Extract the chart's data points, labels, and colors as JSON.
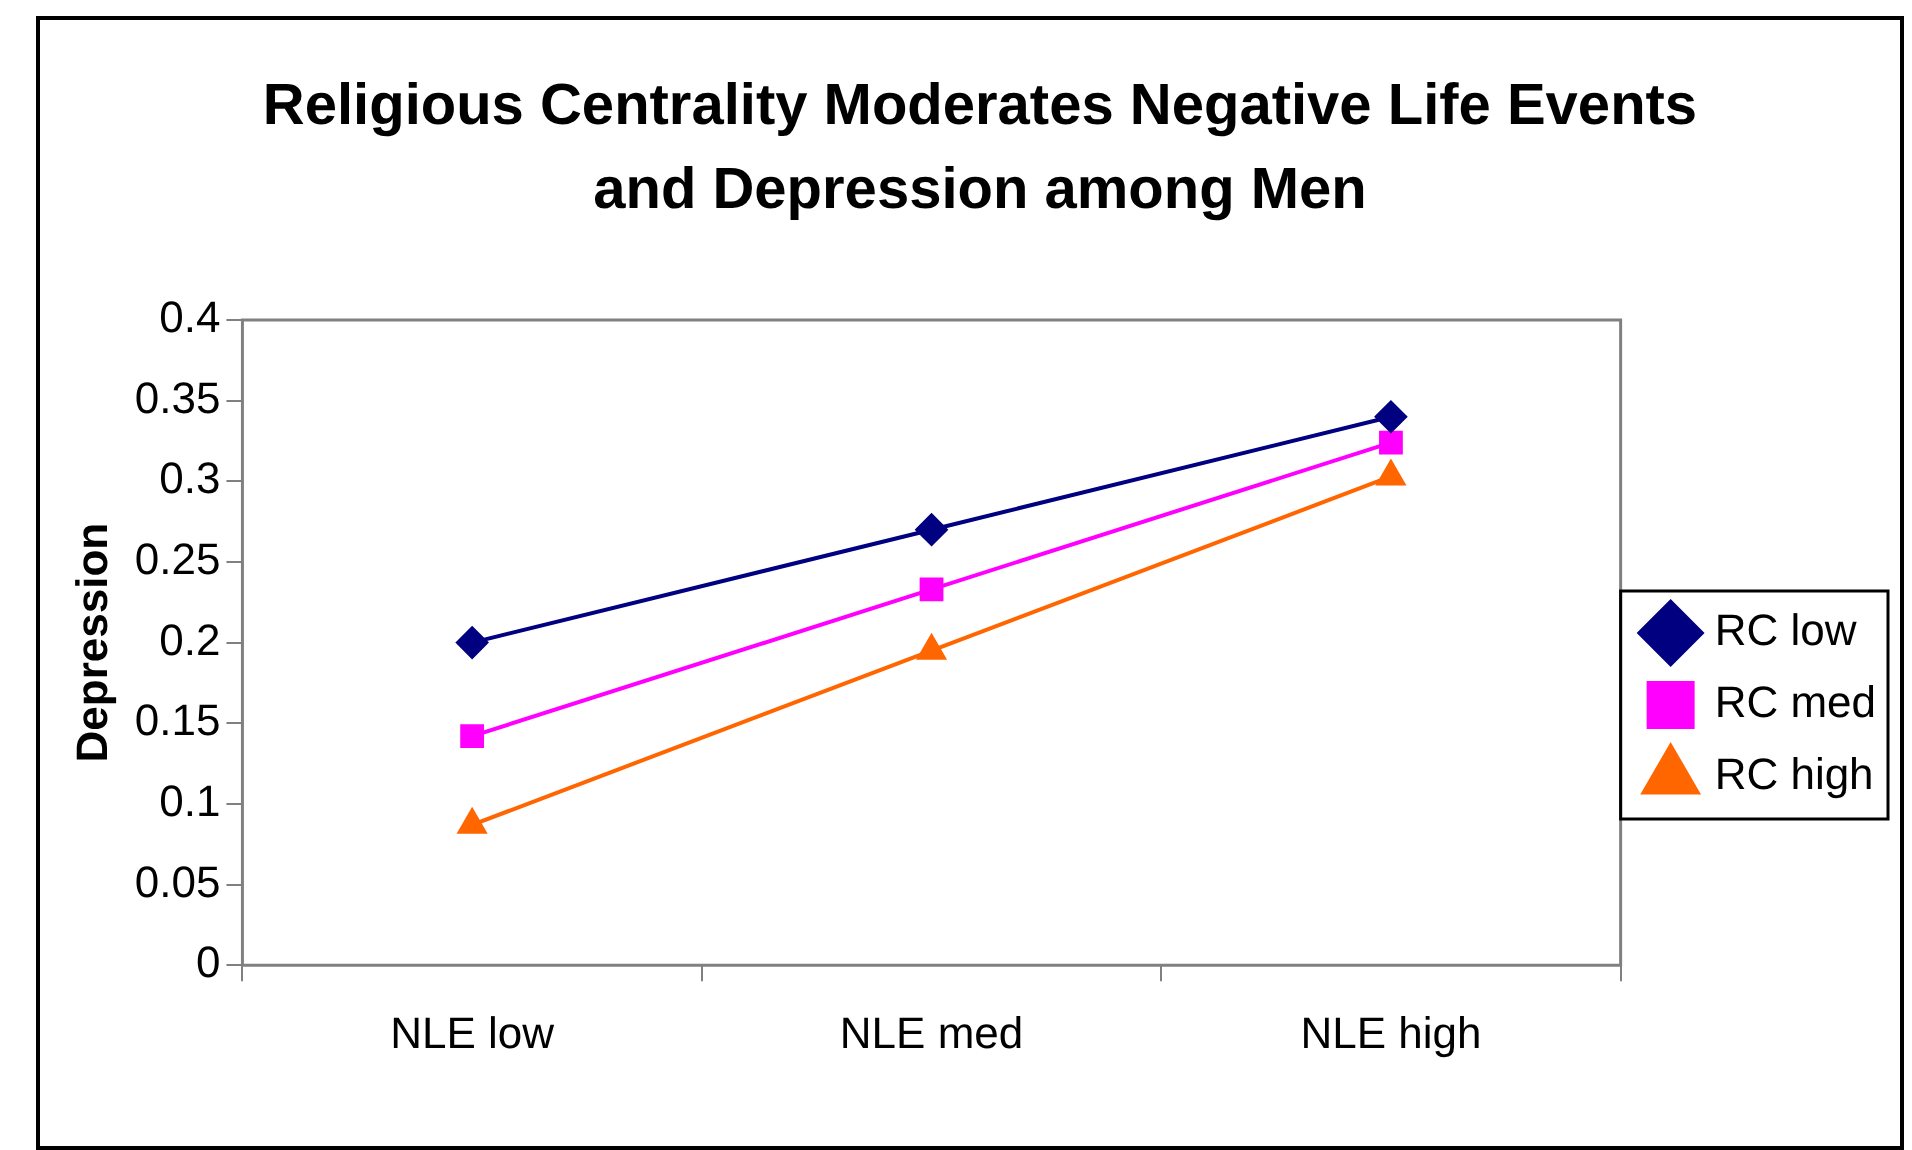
{
  "chart_data": {
    "type": "line",
    "title": "Religious Centrality Moderates Negative Life Events and Depression among Men",
    "ylabel": "Depression",
    "categories": [
      "NLE low",
      "NLE med",
      "NLE high"
    ],
    "series": [
      {
        "name": "RC low",
        "color": "#000080",
        "marker": "diamond",
        "values": [
          0.2,
          0.27,
          0.34
        ]
      },
      {
        "name": "RC med",
        "color": "#ff00ff",
        "marker": "square",
        "values": [
          0.142,
          0.233,
          0.324
        ]
      },
      {
        "name": "RC high",
        "color": "#ff6600",
        "marker": "triangle",
        "values": [
          0.087,
          0.195,
          0.303
        ]
      }
    ],
    "ylim": [
      0,
      0.4
    ],
    "yticks": [
      0,
      0.05,
      0.1,
      0.15,
      0.2,
      0.25,
      0.3,
      0.35,
      0.4
    ],
    "grid": false,
    "legend": "right"
  }
}
